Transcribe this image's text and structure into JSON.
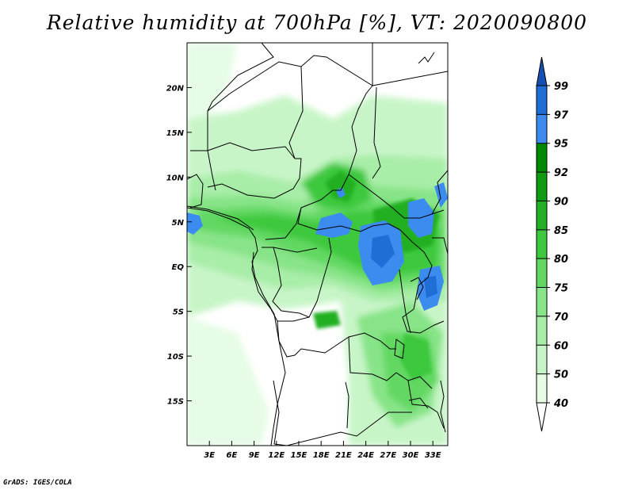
{
  "title": "Relative humidity at 700hPa [%], VT: 2020090800",
  "credit": "GrADS: IGES/COLA",
  "map": {
    "lon_range": [
      0,
      35
    ],
    "lat_range": [
      -20,
      25
    ],
    "lon_ticks": [
      {
        "value": 3,
        "label": "3E"
      },
      {
        "value": 6,
        "label": "6E"
      },
      {
        "value": 9,
        "label": "9E"
      },
      {
        "value": 12,
        "label": "12E"
      },
      {
        "value": 15,
        "label": "15E"
      },
      {
        "value": 18,
        "label": "18E"
      },
      {
        "value": 21,
        "label": "21E"
      },
      {
        "value": 24,
        "label": "24E"
      },
      {
        "value": 27,
        "label": "27E"
      },
      {
        "value": 30,
        "label": "30E"
      },
      {
        "value": 33,
        "label": "33E"
      }
    ],
    "lat_ticks": [
      {
        "value": 20,
        "label": "20N"
      },
      {
        "value": 15,
        "label": "15N"
      },
      {
        "value": 10,
        "label": "10N"
      },
      {
        "value": 5,
        "label": "5N"
      },
      {
        "value": 0,
        "label": "EQ"
      },
      {
        "value": -5,
        "label": "5S"
      },
      {
        "value": -10,
        "label": "10S"
      },
      {
        "value": -15,
        "label": "15S"
      }
    ]
  },
  "colorbar": {
    "levels": [
      "40",
      "50",
      "60",
      "70",
      "75",
      "80",
      "85",
      "90",
      "92",
      "95",
      "97",
      "99"
    ],
    "colors": [
      "#ffffff",
      "#e6fce6",
      "#c8f5c8",
      "#a8eda8",
      "#88e488",
      "#62d862",
      "#3ec83e",
      "#24b024",
      "#109c10",
      "#008800",
      "#3c8cf0",
      "#1e6ed6",
      "#1450b4"
    ]
  }
}
